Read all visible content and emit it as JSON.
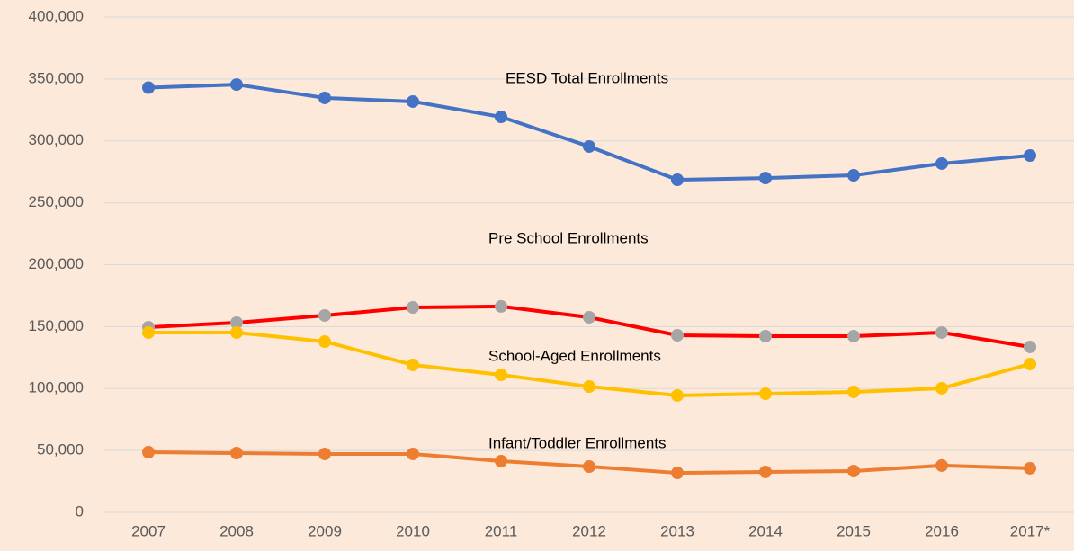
{
  "chart_data": {
    "type": "line",
    "categories": [
      "2007",
      "2008",
      "2009",
      "2010",
      "2011",
      "2012",
      "2013",
      "2014",
      "2015",
      "2016",
      "2017*"
    ],
    "series": [
      {
        "name": "EESD Total Enrollments",
        "color": "#4472c4",
        "values": [
          343000,
          345500,
          334700,
          331800,
          319400,
          295500,
          268600,
          270000,
          272200,
          281700,
          288200
        ]
      },
      {
        "name": "Pre School Enrollments",
        "color": "#ff0000",
        "marker_color": "#a5a5a5",
        "values": [
          149500,
          153200,
          159000,
          165500,
          166300,
          157500,
          143000,
          142300,
          142300,
          145200,
          133600
        ]
      },
      {
        "name": "School-Aged Enrollments",
        "color": "#ffc000",
        "values": [
          145200,
          145200,
          137900,
          119100,
          111100,
          101600,
          94400,
          95800,
          97300,
          100200,
          119800
        ]
      },
      {
        "name": "Infant/Toddler Enrollments",
        "color": "#ed7d31",
        "values": [
          48600,
          47900,
          47200,
          47200,
          41400,
          37000,
          31900,
          32700,
          33400,
          37800,
          35600
        ]
      }
    ],
    "ylim": [
      0,
      400000
    ],
    "yticks": [
      0,
      {
        "value": 50000,
        "label": "50,000"
      },
      {
        "value": 100000,
        "label": "100,000"
      },
      {
        "value": 150000,
        "label": "150,000"
      },
      {
        "value": 200000,
        "label": "200,000"
      },
      {
        "value": 250000,
        "label": "250,000"
      },
      {
        "value": 300000,
        "label": "300,000"
      },
      {
        "value": 350000,
        "label": "350,000"
      },
      {
        "value": 400000,
        "label": "400,000"
      }
    ],
    "grid": true
  }
}
